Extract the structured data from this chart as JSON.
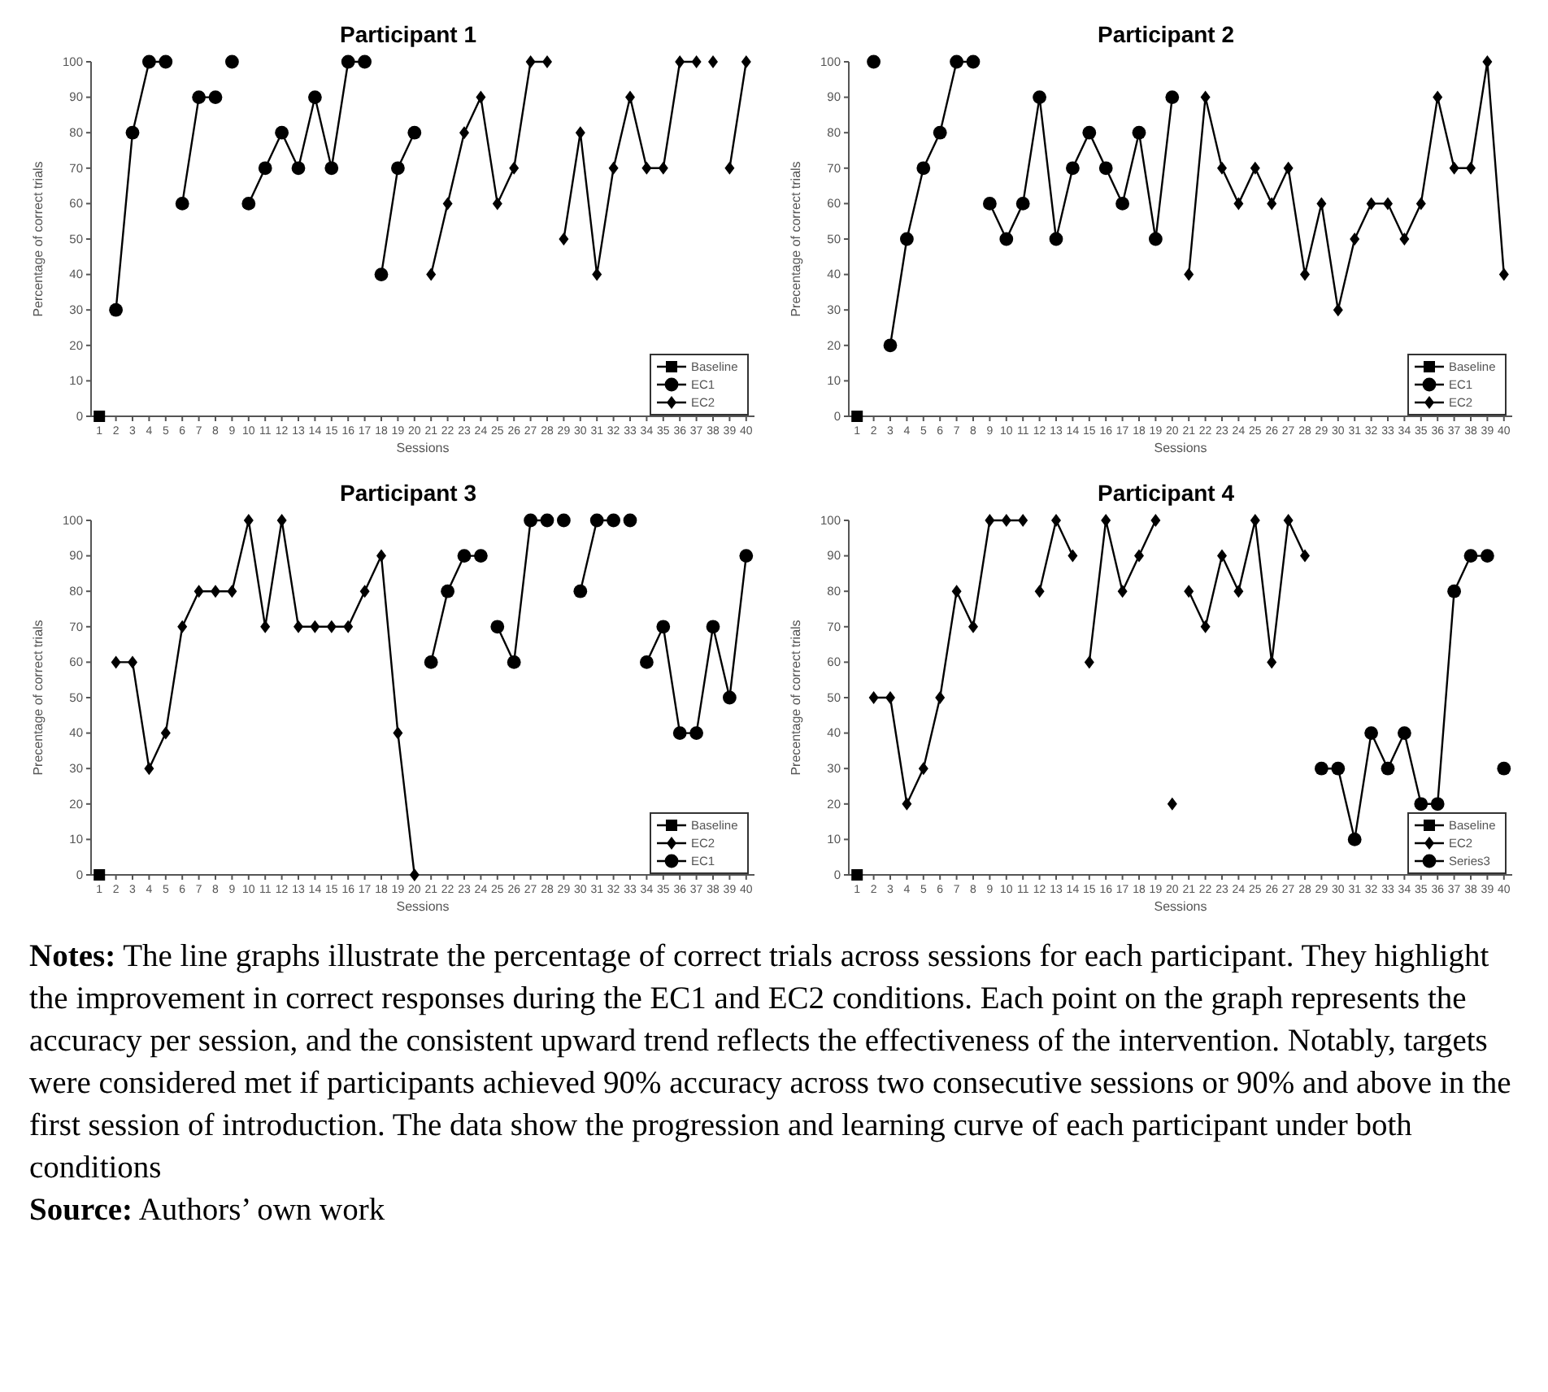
{
  "chart_data": [
    {
      "type": "line",
      "title": "Participant 1",
      "xlabel": "Sessions",
      "ylabel": "Percentage of correct trials",
      "xlim": [
        0.5,
        40.5
      ],
      "xticks": [
        1,
        2,
        3,
        4,
        5,
        6,
        7,
        8,
        9,
        10,
        11,
        12,
        13,
        14,
        15,
        16,
        17,
        18,
        19,
        20,
        21,
        22,
        23,
        24,
        25,
        26,
        27,
        28,
        29,
        30,
        31,
        32,
        33,
        34,
        35,
        36,
        37,
        38,
        39,
        40
      ],
      "ylim": [
        0,
        100
      ],
      "yticks": [
        0,
        10,
        20,
        30,
        40,
        50,
        60,
        70,
        80,
        90,
        100
      ],
      "legend": "bottom right",
      "line_style": "solid",
      "series": [
        {
          "name": "Baseline",
          "color": "#000000",
          "marker": "square",
          "x": [
            1
          ],
          "values": [
            0
          ]
        },
        {
          "name": "EC1",
          "color": "#000000",
          "marker": "circle",
          "x": [
            2,
            3,
            4,
            5,
            5.5,
            6,
            7,
            8,
            8.5,
            9,
            9.5,
            10,
            11,
            12,
            13,
            14,
            15,
            16,
            17,
            17.5,
            18,
            19,
            20
          ],
          "values": [
            30,
            80,
            100,
            100,
            null,
            60,
            90,
            90,
            null,
            100,
            null,
            60,
            70,
            80,
            70,
            90,
            70,
            100,
            100,
            null,
            40,
            70,
            80
          ]
        },
        {
          "name": "EC2",
          "color": "#000000",
          "marker": "diamond",
          "x": [
            21,
            22,
            23,
            24,
            25,
            26,
            27,
            28,
            28.5,
            29,
            30,
            31,
            32,
            33,
            34,
            35,
            36,
            37,
            37.5,
            38,
            38.5,
            39,
            40
          ],
          "values": [
            40,
            60,
            80,
            90,
            60,
            70,
            100,
            100,
            null,
            50,
            80,
            40,
            70,
            90,
            70,
            70,
            100,
            100,
            null,
            100,
            null,
            70,
            100
          ]
        }
      ]
    },
    {
      "type": "line",
      "title": "Participant 2",
      "xlabel": "Sessions",
      "ylabel": "Precentage of correct trials",
      "xlim": [
        0.5,
        40.5
      ],
      "xticks": [
        1,
        2,
        3,
        4,
        5,
        6,
        7,
        8,
        9,
        10,
        11,
        12,
        13,
        14,
        15,
        16,
        17,
        18,
        19,
        20,
        21,
        22,
        23,
        24,
        25,
        26,
        27,
        28,
        29,
        30,
        31,
        32,
        33,
        34,
        35,
        36,
        37,
        38,
        39,
        40
      ],
      "ylim": [
        0,
        100
      ],
      "yticks": [
        0,
        10,
        20,
        30,
        40,
        50,
        60,
        70,
        80,
        90,
        100
      ],
      "legend": "bottom right",
      "line_style": "solid",
      "series": [
        {
          "name": "Baseline",
          "color": "#000000",
          "marker": "square",
          "x": [
            1
          ],
          "values": [
            0
          ]
        },
        {
          "name": "EC1",
          "color": "#000000",
          "marker": "circle",
          "x": [
            2,
            2.5,
            3,
            4,
            5,
            6,
            7,
            8,
            8.5,
            9,
            10,
            11,
            12,
            13,
            14,
            15,
            16,
            17,
            18,
            19,
            20
          ],
          "values": [
            100,
            null,
            20,
            50,
            70,
            80,
            100,
            100,
            null,
            60,
            50,
            60,
            90,
            50,
            70,
            80,
            70,
            60,
            80,
            50,
            90
          ]
        },
        {
          "name": "EC2",
          "color": "#000000",
          "marker": "diamond",
          "x": [
            21,
            22,
            23,
            24,
            25,
            26,
            27,
            28,
            29,
            30,
            31,
            32,
            33,
            34,
            35,
            36,
            37,
            38,
            39,
            40
          ],
          "values": [
            40,
            90,
            70,
            60,
            70,
            60,
            70,
            40,
            60,
            30,
            50,
            60,
            60,
            50,
            60,
            90,
            70,
            70,
            100,
            40
          ]
        }
      ]
    },
    {
      "type": "line",
      "title": "Participant 3",
      "xlabel": "Sessions",
      "ylabel": "Precentage of correct trials",
      "xlim": [
        0.5,
        40.5
      ],
      "xticks": [
        1,
        2,
        3,
        4,
        5,
        6,
        7,
        8,
        9,
        10,
        11,
        12,
        13,
        14,
        15,
        16,
        17,
        18,
        19,
        20,
        21,
        22,
        23,
        24,
        25,
        26,
        27,
        28,
        29,
        30,
        31,
        32,
        33,
        34,
        35,
        36,
        37,
        38,
        39,
        40
      ],
      "ylim": [
        0,
        100
      ],
      "yticks": [
        0,
        10,
        20,
        30,
        40,
        50,
        60,
        70,
        80,
        90,
        100
      ],
      "legend": "bottom right",
      "line_style": "solid",
      "series": [
        {
          "name": "Baseline",
          "color": "#000000",
          "marker": "square",
          "x": [
            1
          ],
          "values": [
            0
          ]
        },
        {
          "name": "EC2",
          "color": "#000000",
          "marker": "diamond",
          "x": [
            2,
            3,
            4,
            5,
            6,
            7,
            8,
            9,
            10,
            11,
            12,
            13,
            14,
            15,
            16,
            17,
            18,
            19,
            20
          ],
          "values": [
            60,
            60,
            30,
            40,
            70,
            80,
            80,
            80,
            100,
            70,
            100,
            70,
            70,
            70,
            70,
            80,
            90,
            40,
            0
          ]
        },
        {
          "name": "EC1",
          "color": "#000000",
          "marker": "circle",
          "x": [
            21,
            22,
            23,
            24,
            24.5,
            25,
            26,
            27,
            28,
            28.5,
            29,
            29.5,
            30,
            31,
            32,
            32.5,
            33,
            33.5,
            34,
            35,
            36,
            37,
            38,
            39,
            40
          ],
          "values": [
            60,
            80,
            90,
            90,
            null,
            70,
            60,
            100,
            100,
            null,
            100,
            null,
            80,
            100,
            100,
            null,
            100,
            null,
            60,
            70,
            40,
            40,
            70,
            50,
            90
          ]
        }
      ]
    },
    {
      "type": "line",
      "title": "Participant 4",
      "xlabel": "Sessions",
      "ylabel": "Precentage of correct trials",
      "xlim": [
        0.5,
        40.5
      ],
      "xticks": [
        1,
        2,
        3,
        4,
        5,
        6,
        7,
        8,
        9,
        10,
        11,
        12,
        13,
        14,
        15,
        16,
        17,
        18,
        19,
        20,
        21,
        22,
        23,
        24,
        25,
        26,
        27,
        28,
        29,
        30,
        31,
        32,
        33,
        34,
        35,
        36,
        37,
        38,
        39,
        40
      ],
      "ylim": [
        0,
        100
      ],
      "yticks": [
        0,
        10,
        20,
        30,
        40,
        50,
        60,
        70,
        80,
        90,
        100
      ],
      "legend": "bottom right",
      "line_style": "solid",
      "series": [
        {
          "name": "Baseline",
          "color": "#000000",
          "marker": "square",
          "x": [
            1
          ],
          "values": [
            0
          ]
        },
        {
          "name": "EC2",
          "color": "#000000",
          "marker": "diamond",
          "x": [
            2,
            3,
            4,
            5,
            6,
            7,
            8,
            9,
            10,
            11,
            11.5,
            12,
            13,
            14,
            14.5,
            15,
            16,
            17,
            18,
            19,
            19.5,
            20,
            20.5,
            21,
            22,
            23,
            24,
            25,
            26,
            27,
            28
          ],
          "values": [
            50,
            50,
            20,
            30,
            50,
            80,
            70,
            100,
            100,
            100,
            null,
            80,
            100,
            90,
            null,
            60,
            100,
            80,
            90,
            100,
            null,
            20,
            null,
            80,
            70,
            90,
            80,
            100,
            60,
            100,
            90
          ]
        },
        {
          "name": "Series3",
          "color": "#000000",
          "marker": "circle",
          "x": [
            29,
            30,
            31,
            32,
            33,
            34,
            35,
            36,
            37,
            38,
            39,
            39.5,
            40
          ],
          "values": [
            30,
            30,
            10,
            40,
            30,
            40,
            20,
            20,
            80,
            90,
            90,
            null,
            30
          ]
        }
      ]
    },
    {
      "type": "other",
      "annotations": [
        "Notes: The line graphs illustrate the percentage of correct trials across sessions for each participant. They highlight the improvement in correct responses during the EC1 and EC2 conditions. Each point on the graph represents the accuracy per session, and the consistent upward trend reflects the effectiveness of the intervention. Notably, targets were considered met if participants achieved 90% accuracy across two consecutive sessions or 90% and above in the first session of introduction. The data show the progression and learning curve of each participant under both conditions",
        "Source: Authors’ own work"
      ]
    }
  ]
}
